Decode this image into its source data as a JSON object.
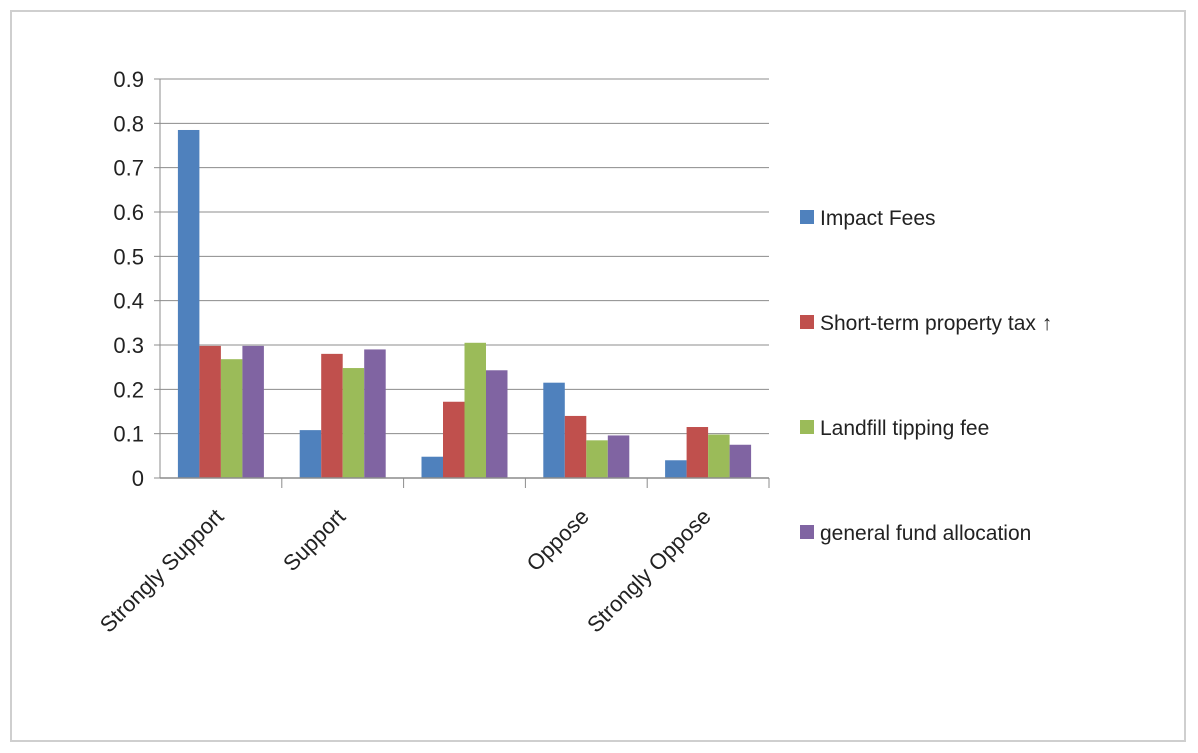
{
  "chart_data": {
    "type": "bar",
    "categories": [
      "Strongly Support",
      "Support",
      "",
      "Oppose",
      "Strongly Oppose"
    ],
    "series": [
      {
        "name": "Impact Fees",
        "color": "#4f81bd",
        "values": [
          0.785,
          0.108,
          0.048,
          0.215,
          0.04
        ]
      },
      {
        "name": "Short-term property tax ↑",
        "color": "#c0504d",
        "values": [
          0.298,
          0.28,
          0.172,
          0.14,
          0.115
        ]
      },
      {
        "name": "Landfill tipping fee",
        "color": "#9bbb59",
        "values": [
          0.268,
          0.248,
          0.305,
          0.085,
          0.098
        ]
      },
      {
        "name": "general fund allocation",
        "color": "#8064a2",
        "values": [
          0.298,
          0.29,
          0.243,
          0.096,
          0.075
        ]
      }
    ],
    "ylim": [
      0,
      0.9
    ],
    "yticks": [
      "0",
      "0.1",
      "0.2",
      "0.3",
      "0.4",
      "0.5",
      "0.6",
      "0.7",
      "0.8",
      "0.9"
    ],
    "grid": true,
    "legend_position": "right",
    "title": "",
    "xlabel": "",
    "ylabel": ""
  }
}
